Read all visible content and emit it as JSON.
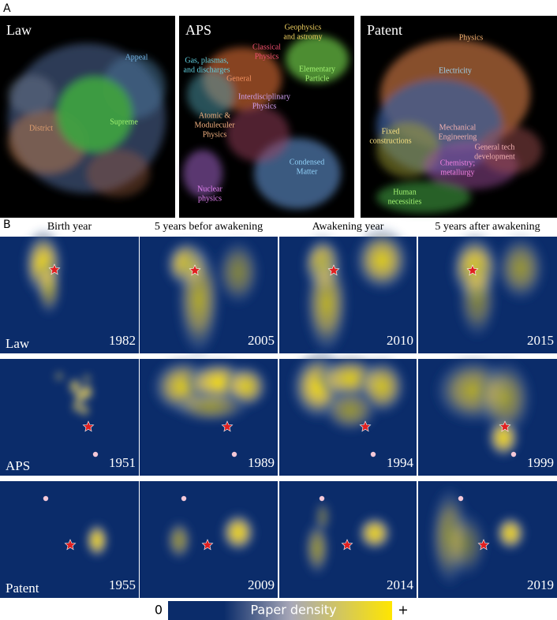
{
  "panel_a": {
    "label": "A",
    "maps": [
      {
        "title": "Law",
        "labels": [
          {
            "lines": [
              "Appeal"
            ]
          },
          {
            "lines": [
              "District"
            ]
          },
          {
            "lines": [
              "Supreme"
            ]
          }
        ]
      },
      {
        "title": "APS",
        "labels": [
          {
            "lines": [
              "Geophysics",
              "and astromy"
            ]
          },
          {
            "lines": [
              "Classical",
              "Physics"
            ]
          },
          {
            "lines": [
              "Elementary",
              "Particle"
            ]
          },
          {
            "lines": [
              "Gas, plasmas,",
              "and discharges"
            ]
          },
          {
            "lines": [
              "General"
            ]
          },
          {
            "lines": [
              "Interdisciplinary",
              "Physics"
            ]
          },
          {
            "lines": [
              "Atomic &",
              "Moduleculer",
              "Physics"
            ]
          },
          {
            "lines": [
              "Condensed",
              "Matter"
            ]
          },
          {
            "lines": [
              "Nuclear",
              "physics"
            ]
          }
        ]
      },
      {
        "title": "Patent",
        "labels": [
          {
            "lines": [
              "Physics"
            ]
          },
          {
            "lines": [
              "Electricity"
            ]
          },
          {
            "lines": [
              "Fixed",
              "constructions"
            ]
          },
          {
            "lines": [
              "Mechanical",
              "Engineering"
            ]
          },
          {
            "lines": [
              "General tech",
              "development"
            ]
          },
          {
            "lines": [
              "Chemistry;",
              "metallurgy"
            ]
          },
          {
            "lines": [
              "Human",
              "necessities"
            ]
          }
        ]
      }
    ]
  },
  "panel_b": {
    "label": "B",
    "columns": [
      "Birth year",
      "5 years befor awakening",
      "Awakening year",
      "5 years after awakening"
    ],
    "rows": [
      {
        "name": "Law",
        "years": [
          "1982",
          "2005",
          "2010",
          "2015"
        ]
      },
      {
        "name": "APS",
        "years": [
          "1951",
          "1989",
          "1994",
          "1999"
        ]
      },
      {
        "name": "Patent",
        "years": [
          "1955",
          "2009",
          "2014",
          "2019"
        ]
      }
    ]
  },
  "colorbar": {
    "min": "0",
    "label": "Paper density",
    "max": "+"
  }
}
